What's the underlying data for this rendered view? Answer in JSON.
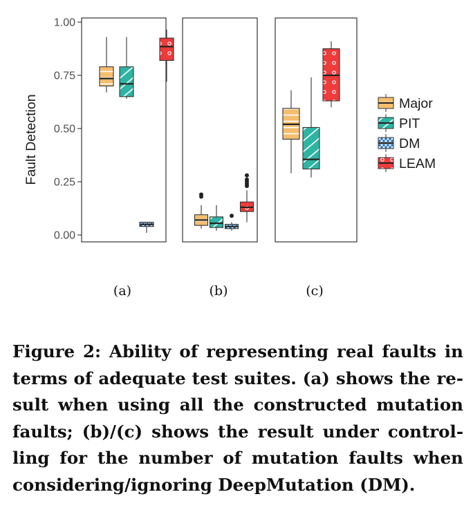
{
  "chart_data": {
    "type": "box",
    "ylabel": "Fault Detection",
    "ylim": [
      0,
      1
    ],
    "yticks": [
      "0.00",
      "0.25",
      "0.50",
      "0.75",
      "1.00"
    ],
    "grid": false,
    "legend_position": "right",
    "panels": [
      {
        "label": "(a)",
        "boxes": [
          {
            "series": "Major",
            "whisker_low": 0.67,
            "q1": 0.7,
            "median": 0.735,
            "q3": 0.79,
            "whisker_high": 0.93,
            "outliers": []
          },
          {
            "series": "PIT",
            "whisker_low": 0.64,
            "q1": 0.65,
            "median": 0.71,
            "q3": 0.79,
            "whisker_high": 0.93,
            "outliers": []
          },
          {
            "series": "DM",
            "whisker_low": 0.01,
            "q1": 0.04,
            "median": 0.05,
            "q3": 0.06,
            "whisker_high": 0.06,
            "outliers": []
          },
          {
            "series": "LEAM",
            "whisker_low": 0.72,
            "q1": 0.82,
            "median": 0.885,
            "q3": 0.925,
            "whisker_high": 0.965,
            "outliers": []
          }
        ]
      },
      {
        "label": "(b)",
        "boxes": [
          {
            "series": "Major",
            "whisker_low": 0.03,
            "q1": 0.045,
            "median": 0.07,
            "q3": 0.095,
            "whisker_high": 0.14,
            "outliers": [
              0.18,
              0.19
            ]
          },
          {
            "series": "PIT",
            "whisker_low": 0.02,
            "q1": 0.035,
            "median": 0.055,
            "q3": 0.085,
            "whisker_high": 0.14,
            "outliers": []
          },
          {
            "series": "DM",
            "whisker_low": 0.02,
            "q1": 0.03,
            "median": 0.04,
            "q3": 0.05,
            "whisker_high": 0.06,
            "outliers": [
              0.09
            ]
          },
          {
            "series": "LEAM",
            "whisker_low": 0.06,
            "q1": 0.11,
            "median": 0.13,
            "q3": 0.155,
            "whisker_high": 0.21,
            "outliers": [
              0.23,
              0.24,
              0.25,
              0.26,
              0.28
            ]
          }
        ]
      },
      {
        "label": "(c)",
        "boxes": [
          {
            "series": "Major",
            "whisker_low": 0.29,
            "q1": 0.45,
            "median": 0.52,
            "q3": 0.595,
            "whisker_high": 0.68,
            "outliers": []
          },
          {
            "series": "PIT",
            "whisker_low": 0.27,
            "q1": 0.31,
            "median": 0.355,
            "q3": 0.505,
            "whisker_high": 0.74,
            "outliers": []
          },
          {
            "series": "LEAM",
            "whisker_low": 0.6,
            "q1": 0.63,
            "median": 0.75,
            "q3": 0.875,
            "whisker_high": 0.91,
            "outliers": []
          }
        ]
      }
    ],
    "legend": [
      {
        "name": "Major",
        "color": "#F5BE6E",
        "pattern": "stripes-horizontal"
      },
      {
        "name": "PIT",
        "color": "#2EB4A2",
        "pattern": "stripes-diagonal"
      },
      {
        "name": "DM",
        "color": "#1F6FB4",
        "pattern": "crosshatch"
      },
      {
        "name": "LEAM",
        "color": "#EE3B3B",
        "pattern": "dots"
      }
    ]
  },
  "caption": "Figure 2: Ability of representing real faults in terms of adequate test suites. (a) shows the re­sult when using all the constructed mutation faults; (b)/(c) shows the result under control­ling for the number of mutation faults when considering/ignoring DeepMutation (DM)."
}
